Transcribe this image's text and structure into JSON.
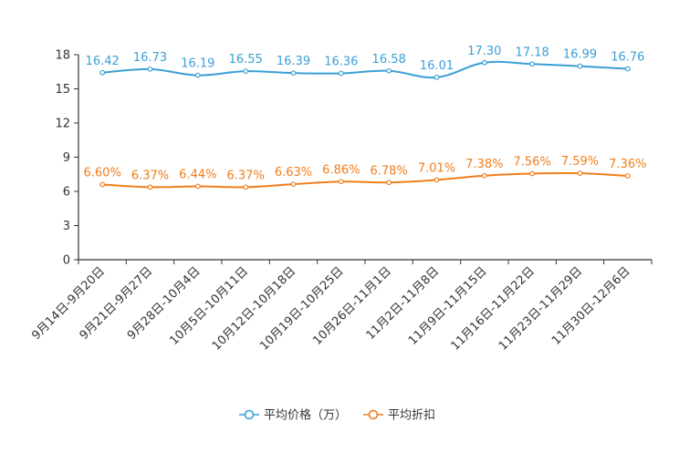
{
  "chart_data": {
    "type": "line",
    "title": "",
    "xlabel": "",
    "ylabel": "",
    "ylim": [
      0,
      18
    ],
    "yticks": [
      0,
      3,
      6,
      9,
      12,
      15,
      18
    ],
    "grid": false,
    "legend_position": "bottom-center",
    "categories": [
      "9月14日-9月20日",
      "9月21日-9月27日",
      "9月28日-10月4日",
      "10月5日-10月11日",
      "10月12日-10月18日",
      "10月19日-10月25日",
      "10月26日-11月1日",
      "11月2日-11月8日",
      "11月9日-11月15日",
      "11月16日-11月22日",
      "11月23日-11月29日",
      "11月30日-12月6日"
    ],
    "series": [
      {
        "name": "平均价格（万）",
        "color": "#3a9fd6",
        "values": [
          16.42,
          16.73,
          16.19,
          16.55,
          16.39,
          16.36,
          16.58,
          16.01,
          17.3,
          17.18,
          16.99,
          16.76
        ],
        "labels": [
          "16.42",
          "16.73",
          "16.19",
          "16.55",
          "16.39",
          "16.36",
          "16.58",
          "16.01",
          "17.30",
          "17.18",
          "16.99",
          "16.76"
        ]
      },
      {
        "name": "平均折扣",
        "color": "#f07d1a",
        "values": [
          6.6,
          6.37,
          6.44,
          6.37,
          6.63,
          6.86,
          6.78,
          7.01,
          7.38,
          7.56,
          7.59,
          7.36
        ],
        "labels": [
          "6.60%",
          "6.37%",
          "6.44%",
          "6.37%",
          "6.63%",
          "6.86%",
          "6.78%",
          "7.01%",
          "7.38%",
          "7.56%",
          "7.59%",
          "7.36%"
        ]
      }
    ]
  }
}
